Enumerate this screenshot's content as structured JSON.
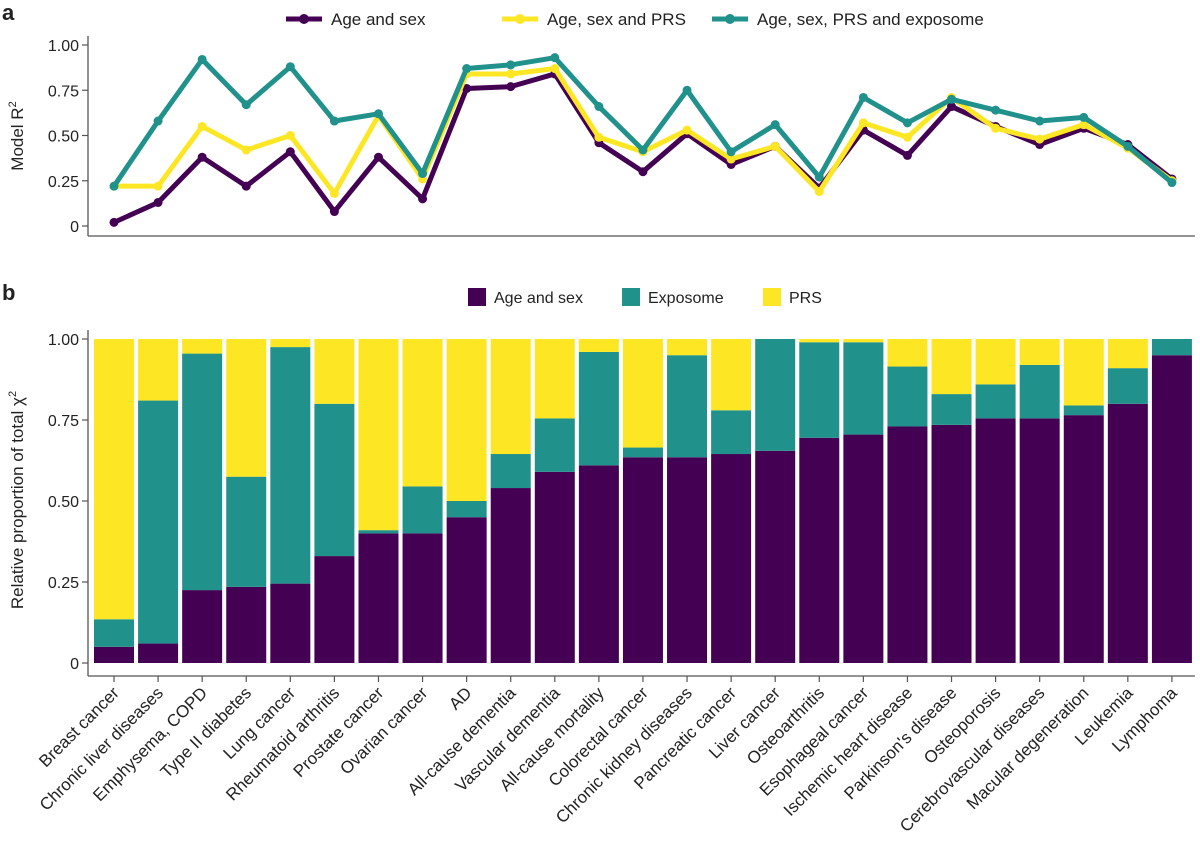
{
  "chart_data": [
    {
      "panel_label": "a",
      "type": "line",
      "ylabel": "Model R",
      "ylabel_sup": "2",
      "ylim": [
        0,
        1
      ],
      "yticks": [
        "0",
        "0.25",
        "0.50",
        "0.75",
        "1.00"
      ],
      "ytick_values": [
        0,
        0.25,
        0.5,
        0.75,
        1
      ],
      "grid": false,
      "legend_placement": "top",
      "categories": [
        "Breast cancer",
        "Chronic liver diseases",
        "Emphysema, COPD",
        "Type II diabetes",
        "Lung cancer",
        "Rheumatoid arthritis",
        "Prostate cancer",
        "Ovarian cancer",
        "AD",
        "All-cause dementia",
        "Vascular dementia",
        "All-cause mortality",
        "Colorectal cancer",
        "Chronic kidney diseases",
        "Pancreatic cancer",
        "Liver cancer",
        "Osteoarthritis",
        "Esophageal cancer",
        "Ischemic heart disease",
        "Parkinson's disease",
        "Osteoporosis",
        "Cerebrovascular diseases",
        "Macular degeneration",
        "Leukemia",
        "Lymphoma"
      ],
      "series": [
        {
          "name": "Age and sex",
          "color": "#440154",
          "values": [
            0.02,
            0.13,
            0.38,
            0.22,
            0.41,
            0.08,
            0.38,
            0.15,
            0.76,
            0.77,
            0.84,
            0.46,
            0.3,
            0.51,
            0.34,
            0.44,
            0.21,
            0.53,
            0.39,
            0.66,
            0.55,
            0.45,
            0.54,
            0.45,
            0.26
          ]
        },
        {
          "name": "Age, sex and PRS",
          "color": "#fde725",
          "values": [
            0.22,
            0.22,
            0.55,
            0.42,
            0.5,
            0.18,
            0.61,
            0.26,
            0.84,
            0.84,
            0.87,
            0.49,
            0.41,
            0.53,
            0.37,
            0.44,
            0.19,
            0.57,
            0.49,
            0.71,
            0.54,
            0.48,
            0.56,
            0.43,
            0.25
          ]
        },
        {
          "name": "Age, sex, PRS and exposome",
          "color": "#21918c",
          "values": [
            0.22,
            0.58,
            0.92,
            0.67,
            0.88,
            0.58,
            0.62,
            0.29,
            0.87,
            0.89,
            0.93,
            0.66,
            0.42,
            0.75,
            0.41,
            0.56,
            0.27,
            0.71,
            0.57,
            0.7,
            0.64,
            0.58,
            0.6,
            0.44,
            0.24
          ]
        }
      ]
    },
    {
      "panel_label": "b",
      "type": "bar",
      "stacked": true,
      "ylabel": "Relative proportion of total χ",
      "ylabel_sup": "2",
      "ylim": [
        0,
        1
      ],
      "yticks": [
        "0",
        "0.25",
        "0.50",
        "0.75",
        "1.00"
      ],
      "ytick_values": [
        0,
        0.25,
        0.5,
        0.75,
        1
      ],
      "grid": false,
      "legend_placement": "top",
      "categories": [
        "Breast cancer",
        "Chronic liver diseases",
        "Emphysema, COPD",
        "Type II diabetes",
        "Lung cancer",
        "Rheumatoid arthritis",
        "Prostate cancer",
        "Ovarian cancer",
        "AD",
        "All-cause dementia",
        "Vascular dementia",
        "All-cause mortality",
        "Colorectal cancer",
        "Chronic kidney diseases",
        "Pancreatic cancer",
        "Liver cancer",
        "Osteoarthritis",
        "Esophageal cancer",
        "Ischemic heart disease",
        "Parkinson's disease",
        "Osteoporosis",
        "Cerebrovascular diseases",
        "Macular degeneration",
        "Leukemia",
        "Lymphoma"
      ],
      "series": [
        {
          "name": "Age and sex",
          "color": "#440154",
          "values": [
            0.05,
            0.06,
            0.225,
            0.235,
            0.245,
            0.33,
            0.4,
            0.4,
            0.45,
            0.54,
            0.59,
            0.61,
            0.635,
            0.635,
            0.645,
            0.655,
            0.695,
            0.705,
            0.73,
            0.735,
            0.755,
            0.755,
            0.765,
            0.8,
            0.95
          ]
        },
        {
          "name": "Exposome",
          "color": "#21918c",
          "values": [
            0.085,
            0.75,
            0.73,
            0.34,
            0.73,
            0.47,
            0.01,
            0.145,
            0.05,
            0.105,
            0.165,
            0.35,
            0.03,
            0.315,
            0.135,
            0.345,
            0.295,
            0.285,
            0.185,
            0.095,
            0.105,
            0.165,
            0.03,
            0.11,
            0.05
          ]
        },
        {
          "name": "PRS",
          "color": "#fde725",
          "values": [
            0.865,
            0.19,
            0.045,
            0.425,
            0.025,
            0.2,
            0.59,
            0.455,
            0.5,
            0.355,
            0.245,
            0.04,
            0.335,
            0.05,
            0.22,
            0.0,
            0.01,
            0.01,
            0.085,
            0.17,
            0.14,
            0.08,
            0.205,
            0.09,
            0.0
          ]
        }
      ]
    }
  ]
}
